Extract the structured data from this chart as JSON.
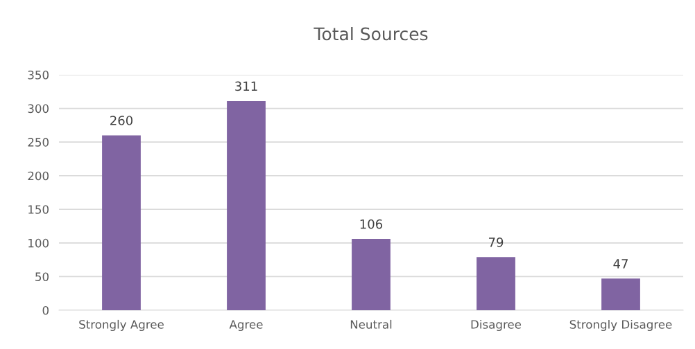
{
  "chart_data": {
    "type": "bar",
    "title": "Total Sources",
    "categories": [
      "Strongly Agree",
      "Agree",
      "Neutral",
      "Disagree",
      "Strongly Disagree"
    ],
    "values": [
      260,
      311,
      106,
      79,
      47
    ],
    "color": "#8064a2",
    "ylim": [
      0,
      350
    ],
    "yticks": [
      0,
      50,
      100,
      150,
      200,
      250,
      300,
      350
    ],
    "grid": "y",
    "data_labels": true
  }
}
